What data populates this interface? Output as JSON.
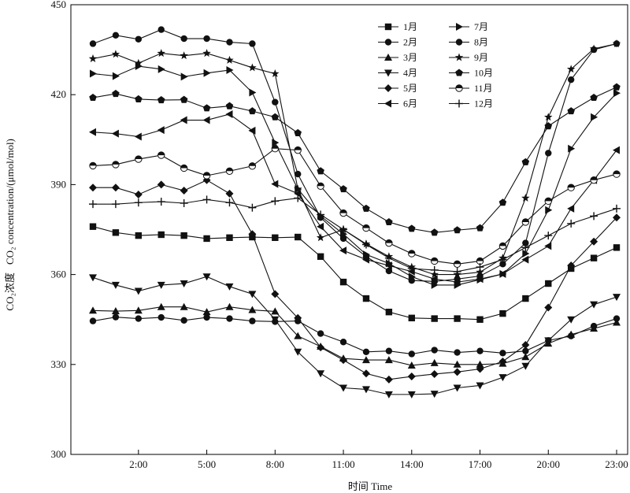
{
  "chart_data": {
    "type": "line",
    "xlabel": "时间 Time",
    "ylabel_cn": "CO₂浓度",
    "ylabel_en": "CO₂ concentration/(μmol/mol)",
    "xlim": [
      0,
      23
    ],
    "ylim": [
      300,
      450
    ],
    "x_tick_values": [
      2,
      5,
      8,
      11,
      14,
      17,
      20,
      23
    ],
    "x_tick_labels": [
      "2:00",
      "5:00",
      "8:00",
      "11:00",
      "14:00",
      "17:00",
      "20:00",
      "23:00"
    ],
    "y_ticks": [
      300,
      330,
      360,
      390,
      420,
      450
    ],
    "legend_placement": "top-right, two columns",
    "x": [
      0,
      1,
      2,
      3,
      4,
      5,
      6,
      7,
      8,
      9,
      10,
      11,
      12,
      13,
      14,
      15,
      16,
      17,
      18,
      19,
      20,
      21,
      22,
      23
    ],
    "series": [
      {
        "name": "1月",
        "marker": "square",
        "values": [
          376,
          374,
          373,
          373.3,
          373,
          372,
          372.3,
          372.5,
          372.3,
          372.5,
          366,
          357.5,
          352,
          347.5,
          345.5,
          345.3,
          345.3,
          345,
          347,
          352,
          357,
          362,
          365.5,
          369
        ]
      },
      {
        "name": "2月",
        "marker": "circle",
        "values": [
          344.5,
          345.8,
          345.3,
          345.7,
          344.7,
          345.7,
          345.3,
          344.5,
          344.3,
          344.5,
          340.3,
          337.5,
          334.2,
          334.5,
          333.5,
          334.8,
          334,
          334.5,
          333.8,
          334.5,
          338,
          339.5,
          342.8,
          345.3
        ]
      },
      {
        "name": "3月",
        "marker": "triangle-up",
        "values": [
          348,
          347.8,
          348,
          349.2,
          349.2,
          347.5,
          349.2,
          348.2,
          347.7,
          339.5,
          336,
          332,
          331.5,
          331.5,
          329.7,
          330.5,
          330,
          330,
          330.3,
          332.5,
          337,
          340,
          342,
          344
        ]
      },
      {
        "name": "4月",
        "marker": "triangle-down",
        "values": [
          359,
          356.5,
          354.5,
          356.5,
          357,
          359.3,
          356,
          353.5,
          345,
          334.2,
          327,
          322.2,
          321.7,
          320,
          320,
          320.2,
          322.2,
          323,
          325.7,
          329.5,
          338,
          345,
          350,
          352.5
        ]
      },
      {
        "name": "5月",
        "marker": "diamond",
        "values": [
          389,
          389,
          386.7,
          390,
          388,
          391.5,
          387,
          373.5,
          353.5,
          345.5,
          335.7,
          331.5,
          327,
          325,
          326,
          326.8,
          327.5,
          328.5,
          331,
          336.5,
          349,
          363,
          371,
          379
        ]
      },
      {
        "name": "6月",
        "marker": "triangle-left",
        "values": [
          407.5,
          407,
          406,
          408.2,
          411.5,
          411.5,
          413.5,
          408,
          390.2,
          387,
          376,
          368,
          365,
          363,
          361,
          358.5,
          357.5,
          358.5,
          360.2,
          365,
          369.5,
          382,
          391.5,
          401.5
        ]
      },
      {
        "name": "7月",
        "marker": "triangle-right",
        "values": [
          427,
          426.2,
          429.5,
          428.5,
          426,
          427.2,
          428.2,
          420.7,
          404,
          388.5,
          379.5,
          373.5,
          366.7,
          363.7,
          359.3,
          356.5,
          356.5,
          358.3,
          360.2,
          367,
          381.5,
          402,
          412.5,
          420.5
        ]
      },
      {
        "name": "8月",
        "marker": "circle",
        "values": [
          437,
          439.8,
          438.5,
          441.7,
          438.7,
          438.7,
          437.5,
          437,
          417.5,
          393.5,
          379,
          372,
          366,
          361.2,
          358,
          357.7,
          358.5,
          359.5,
          363.5,
          370.5,
          400.5,
          425,
          435,
          437
        ]
      },
      {
        "name": "9月",
        "marker": "star",
        "values": [
          432,
          433.5,
          430.5,
          433.8,
          433,
          433.8,
          431.5,
          429,
          427,
          388.5,
          372.3,
          375,
          370.2,
          366,
          362.5,
          360,
          360,
          360.8,
          365.5,
          385.5,
          412.5,
          428.5,
          435.3,
          437
        ]
      },
      {
        "name": "10月",
        "marker": "pentagon",
        "values": [
          419,
          420.3,
          418.5,
          418.2,
          418.3,
          415.5,
          416.2,
          414.5,
          412.5,
          407.2,
          394.5,
          388.5,
          382,
          377.5,
          375.3,
          374,
          374.8,
          375.5,
          384,
          397.5,
          409.5,
          414.5,
          419,
          422.5
        ]
      },
      {
        "name": "11月",
        "marker": "half-circle",
        "values": [
          396.3,
          396.7,
          398.5,
          399.8,
          395.5,
          393,
          394.5,
          396.2,
          402,
          401.5,
          389.5,
          380.5,
          375.5,
          370.5,
          367,
          364.5,
          363.5,
          364.5,
          369.5,
          377.5,
          384.5,
          389,
          391.5,
          393.5
        ]
      },
      {
        "name": "12月",
        "marker": "plus",
        "values": [
          383.5,
          383.5,
          384,
          384.3,
          383.8,
          385,
          384,
          382.3,
          384.5,
          385.5,
          380,
          375,
          370,
          365.5,
          362,
          361.5,
          361,
          362.5,
          365,
          369,
          373,
          377,
          379.5,
          382
        ]
      }
    ]
  }
}
